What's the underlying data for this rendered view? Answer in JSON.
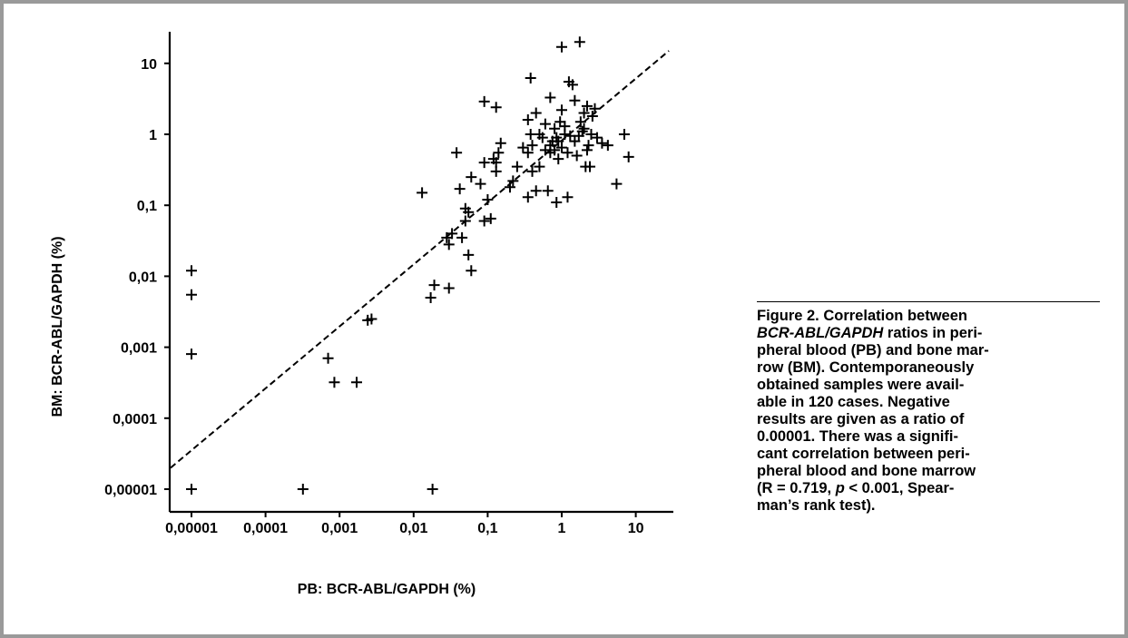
{
  "chart_data": {
    "type": "scatter",
    "xlabel": "PB: BCR-ABL/GAPDH (%)",
    "ylabel": "BM: BCR-ABL/GAPDH (%)",
    "x_scale": "log",
    "y_scale": "log",
    "xlim": [
      7e-06,
      30
    ],
    "ylim": [
      7e-06,
      30
    ],
    "x_ticks": [
      "0,00001",
      "0,0001",
      "0,001",
      "0,01",
      "0,1",
      "1",
      "10"
    ],
    "y_ticks": [
      "10",
      "1",
      "0,1",
      "0,01",
      "0,001",
      "0,0001",
      "0,00001"
    ],
    "x_tick_values": [
      1e-05,
      0.0001,
      0.001,
      0.01,
      0.1,
      1,
      10
    ],
    "y_tick_values": [
      10,
      1,
      0.1,
      0.01,
      0.001,
      0.0001,
      1e-05
    ],
    "marker": "+",
    "regression_line": {
      "style": "dashed",
      "from": [
        7e-06,
        2e-05
      ],
      "to": [
        28,
        15
      ]
    },
    "points": [
      [
        1e-05,
        0.012
      ],
      [
        1e-05,
        0.0055
      ],
      [
        1e-05,
        0.0008
      ],
      [
        1e-05,
        1e-05
      ],
      [
        0.00032,
        1e-05
      ],
      [
        0.018,
        1e-05
      ],
      [
        0.0007,
        0.0007
      ],
      [
        0.00085,
        0.00032
      ],
      [
        0.0017,
        0.00032
      ],
      [
        0.0024,
        0.0024
      ],
      [
        0.0027,
        0.0025
      ],
      [
        0.017,
        0.005
      ],
      [
        0.019,
        0.0075
      ],
      [
        0.03,
        0.0068
      ],
      [
        0.013,
        0.15
      ],
      [
        0.028,
        0.035
      ],
      [
        0.03,
        0.028
      ],
      [
        0.033,
        0.04
      ],
      [
        0.038,
        0.55
      ],
      [
        0.042,
        0.17
      ],
      [
        0.045,
        0.035
      ],
      [
        0.05,
        0.09
      ],
      [
        0.05,
        0.06
      ],
      [
        0.055,
        0.02
      ],
      [
        0.06,
        0.012
      ],
      [
        0.055,
        0.08
      ],
      [
        0.06,
        0.25
      ],
      [
        0.08,
        0.2
      ],
      [
        0.09,
        0.06
      ],
      [
        0.09,
        0.4
      ],
      [
        0.1,
        0.12
      ],
      [
        0.11,
        0.065
      ],
      [
        0.12,
        0.45
      ],
      [
        0.13,
        0.3
      ],
      [
        0.14,
        0.55
      ],
      [
        0.15,
        0.75
      ],
      [
        0.13,
        0.4
      ],
      [
        0.09,
        2.9
      ],
      [
        0.13,
        2.4
      ],
      [
        0.2,
        0.18
      ],
      [
        0.22,
        0.22
      ],
      [
        0.25,
        0.35
      ],
      [
        0.3,
        0.65
      ],
      [
        0.35,
        0.55
      ],
      [
        0.35,
        0.13
      ],
      [
        0.38,
        1.0
      ],
      [
        0.35,
        1.6
      ],
      [
        0.4,
        0.3
      ],
      [
        0.4,
        0.7
      ],
      [
        0.45,
        2.0
      ],
      [
        0.45,
        0.16
      ],
      [
        0.5,
        1.0
      ],
      [
        0.55,
        0.9
      ],
      [
        0.6,
        0.6
      ],
      [
        0.65,
        0.16
      ],
      [
        0.38,
        6.2
      ],
      [
        0.7,
        3.3
      ],
      [
        0.7,
        0.7
      ],
      [
        0.75,
        0.8
      ],
      [
        0.8,
        1.2
      ],
      [
        0.8,
        0.6
      ],
      [
        0.85,
        0.9
      ],
      [
        0.85,
        0.11
      ],
      [
        0.9,
        0.45
      ],
      [
        0.95,
        1.5
      ],
      [
        1.0,
        2.2
      ],
      [
        1.0,
        17.0
      ],
      [
        1.1,
        1.0
      ],
      [
        1.2,
        0.55
      ],
      [
        1.2,
        0.13
      ],
      [
        1.25,
        5.5
      ],
      [
        1.4,
        5.0
      ],
      [
        1.5,
        0.8
      ],
      [
        1.5,
        3.0
      ],
      [
        1.6,
        0.5
      ],
      [
        1.7,
        0.95
      ],
      [
        1.75,
        20.0
      ],
      [
        1.8,
        1.5
      ],
      [
        2.0,
        1.2
      ],
      [
        2.0,
        2.0
      ],
      [
        2.1,
        0.35
      ],
      [
        2.2,
        0.6
      ],
      [
        2.3,
        0.7
      ],
      [
        2.5,
        1.0
      ],
      [
        2.6,
        1.8
      ],
      [
        2.8,
        2.3
      ],
      [
        3.0,
        0.9
      ],
      [
        3.5,
        0.75
      ],
      [
        4.2,
        0.7
      ],
      [
        5.5,
        0.2
      ],
      [
        7.0,
        1.0
      ],
      [
        8.0,
        0.48
      ],
      [
        2.2,
        2.5
      ],
      [
        1.3,
        0.95
      ],
      [
        1.0,
        0.65
      ],
      [
        0.7,
        0.55
      ],
      [
        0.6,
        1.4
      ],
      [
        1.1,
        1.3
      ],
      [
        0.9,
        0.8
      ],
      [
        2.4,
        0.35
      ],
      [
        1.9,
        1.1
      ],
      [
        0.5,
        0.35
      ]
    ]
  },
  "caption": {
    "lines": [
      "Figure 2. Correlation between",
      "BCR-ABL/GAPDH ratios in peri-",
      "pheral blood (PB) and bone mar-",
      "row (BM). Contemporaneously",
      "obtained samples were avail-",
      "able in 120 cases. Negative",
      "results are given as a ratio of",
      "0.00001. There was a signifi-",
      "cant correlation between peri-",
      "pheral blood and bone marrow",
      "(R = 0.719, p < 0.001, Spear-",
      "man’s rank test)."
    ]
  }
}
